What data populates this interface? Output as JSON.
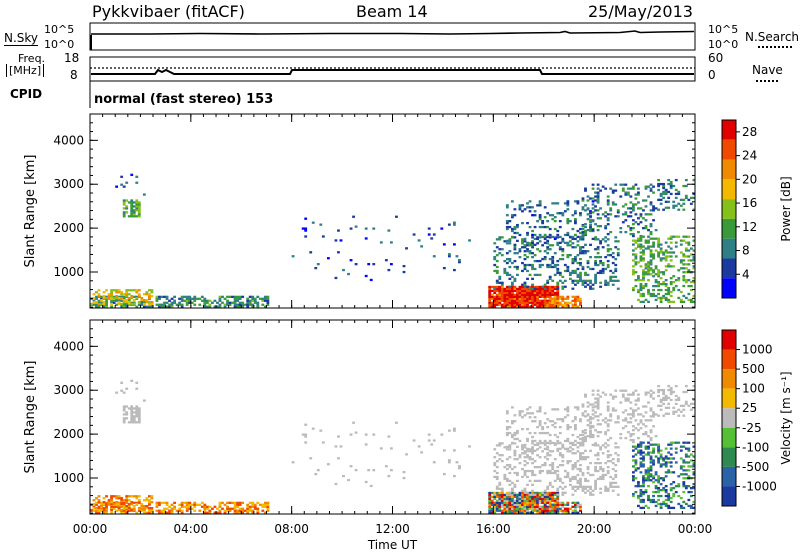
{
  "header": {
    "radar": "Pykkvibaer (fitACF)",
    "beam": "Beam 14",
    "date": "25/May/2013"
  },
  "noise_panel": {
    "left_label": "N.Sky",
    "right_label": "N.Search",
    "left_ticks": [
      "10^5",
      "10^0"
    ],
    "right_ticks": [
      "10^5",
      "10^0"
    ]
  },
  "freq_panel": {
    "left_label_1": "Freq.",
    "left_label_2": "[MHz]",
    "right_label": "Nave",
    "left_ticks": [
      "18",
      "8"
    ],
    "right_ticks": [
      "60",
      "0"
    ]
  },
  "cpid": {
    "label": "CPID",
    "value": "normal (fast stereo) 153"
  },
  "colors": {
    "power_scale": [
      "#0000ff",
      "#1a3aa0",
      "#2f7f86",
      "#3a9a3a",
      "#86c01a",
      "#f3b800",
      "#f08a00",
      "#f04a00",
      "#e00000"
    ],
    "velocity_scale": [
      "#1a3aa0",
      "#2a62a8",
      "#2f8a50",
      "#55c035",
      "#bbbbbb",
      "#f3b800",
      "#f08a00",
      "#f04a00",
      "#e00000"
    ],
    "ground_scatter": "#bbbbbb"
  },
  "chart_data": [
    {
      "type": "heatmap",
      "name": "power",
      "ylabel": "Slant Range [km]",
      "ylim": [
        180,
        4600
      ],
      "xlim_hours": [
        0,
        24
      ],
      "y_ticks": [
        1000,
        2000,
        3000,
        4000
      ],
      "x_ticks": [
        "00:00",
        "04:00",
        "08:00",
        "12:00",
        "16:00",
        "20:00",
        "00:00"
      ],
      "colorbar": {
        "label": "Power [dB]",
        "ticks": [
          4,
          8,
          12,
          16,
          20,
          24,
          28
        ],
        "range": [
          0,
          30
        ]
      }
    },
    {
      "type": "heatmap",
      "name": "velocity",
      "ylabel": "Slant Range [km]",
      "ylim": [
        180,
        4600
      ],
      "xlim_hours": [
        0,
        24
      ],
      "y_ticks": [
        1000,
        2000,
        3000,
        4000
      ],
      "x_ticks": [
        "00:00",
        "04:00",
        "08:00",
        "12:00",
        "16:00",
        "20:00",
        "00:00"
      ],
      "xlabel": "Time UT",
      "colorbar": {
        "label": "Velocity [m s⁻¹]",
        "ticks": [
          1000,
          500,
          100,
          25,
          -25,
          -100,
          -500,
          -1000
        ]
      }
    }
  ]
}
